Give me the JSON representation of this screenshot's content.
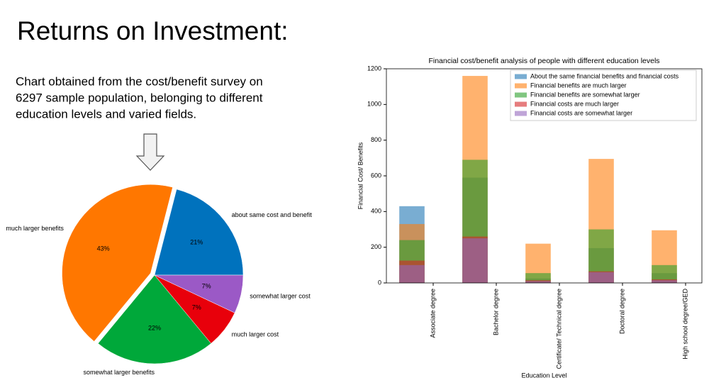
{
  "title": "Returns on Investment:",
  "description": [
    "Chart obtained from the cost/benefit survey on",
    "6297 sample population, belonging to different",
    "education levels and varied fields."
  ],
  "chart_data": [
    {
      "type": "pie",
      "categories": [
        "about same cost and benefit",
        "much larger benefits",
        "somewhat larger benefits",
        "much larger cost",
        "somewhat larger cost"
      ],
      "values": [
        21,
        43,
        22,
        7,
        7
      ],
      "value_labels": [
        "21%",
        "43%",
        "22%",
        "7%",
        "7%"
      ],
      "colors": [
        "#0072bd",
        "#ff7700",
        "#00a83a",
        "#e8000b",
        "#9b59c6"
      ],
      "explode": [
        0,
        0.05,
        0,
        0,
        0
      ]
    },
    {
      "type": "bar",
      "title": "Financial cost/benefit analysis of people with different education levels",
      "x_label": "Education Level",
      "y_label": "Financial Cost/ Benefits",
      "categories": [
        "Associate degree",
        "Bachelor degree",
        "Certificate/ Technical degree",
        "Doctoral degree",
        "High school degree/GED"
      ],
      "series": [
        {
          "name": "About the same financial benefits and financial costs",
          "color": "#1f77b4",
          "values": [
            430,
            590,
            25,
            195,
            55
          ]
        },
        {
          "name": "Financial benefits are much larger",
          "color": "#ff7f0e",
          "values": [
            330,
            1160,
            220,
            695,
            295
          ]
        },
        {
          "name": "Financial benefits are somewhat larger",
          "color": "#2ca02c",
          "values": [
            240,
            690,
            55,
            300,
            100
          ]
        },
        {
          "name": "Financial costs are much larger",
          "color": "#d62728",
          "values": [
            125,
            260,
            15,
            65,
            20
          ]
        },
        {
          "name": "Financial costs are somewhat larger",
          "color": "#9467bd",
          "values": [
            100,
            250,
            10,
            60,
            15
          ]
        }
      ],
      "alpha": 0.6,
      "ylim": [
        0,
        1200
      ],
      "yticks": [
        0,
        200,
        400,
        600,
        800,
        1000,
        1200
      ],
      "legend": "upper right"
    }
  ]
}
